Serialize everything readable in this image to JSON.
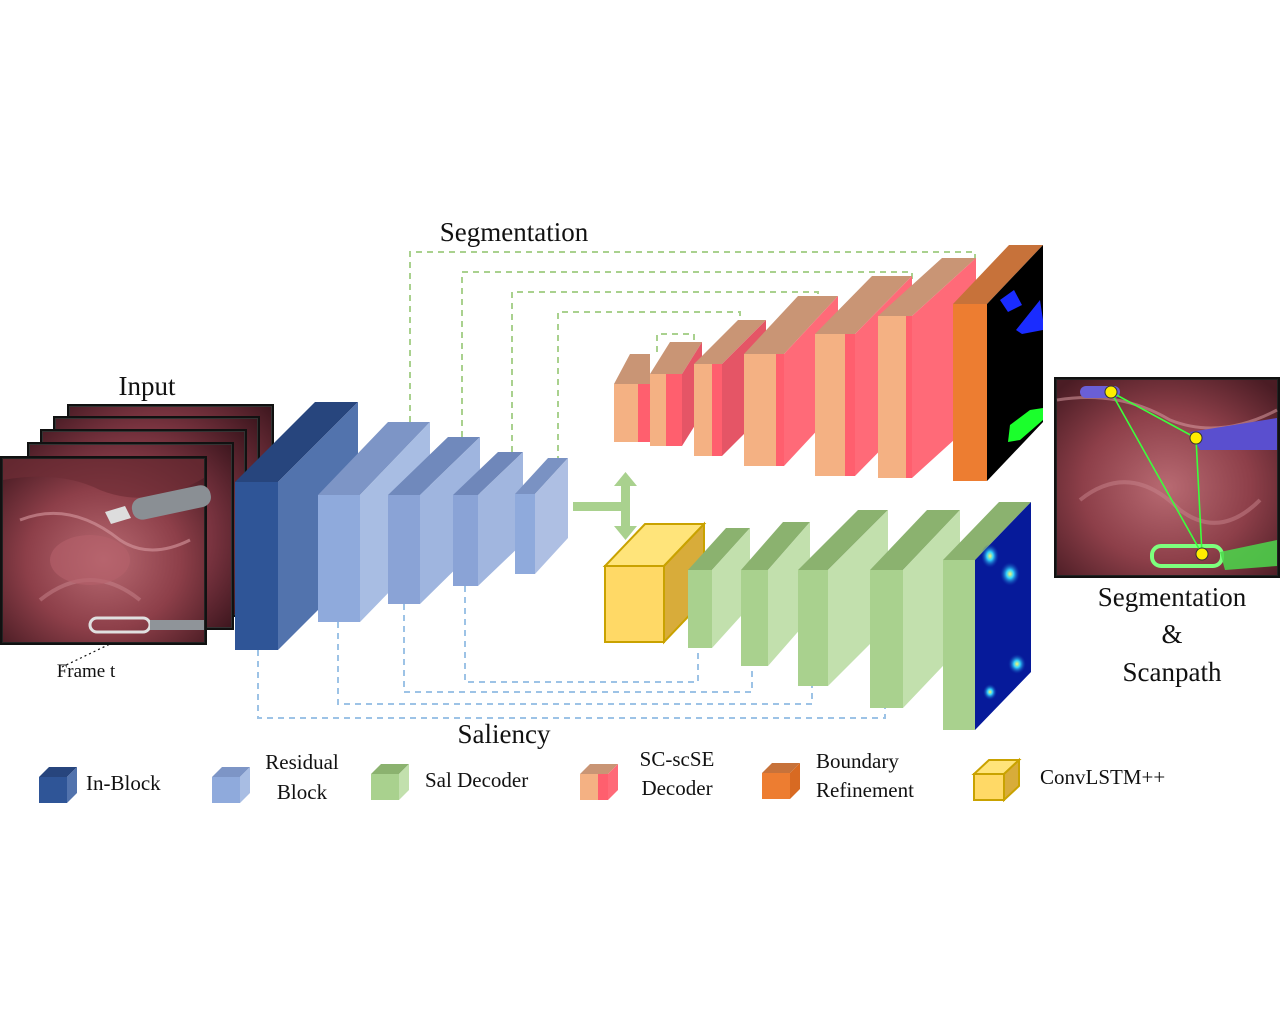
{
  "labels": {
    "input": "Input",
    "frame": "Frame t",
    "segmentation_top": "Segmentation",
    "saliency": "Saliency",
    "output_line1": "Segmentation",
    "output_line2": "&",
    "output_line3": "Scanpath"
  },
  "legend": [
    {
      "label_lines": [
        "In-Block"
      ],
      "color": "#2f5597"
    },
    {
      "label_lines": [
        "Residual",
        "Block"
      ],
      "color": "#8faadc"
    },
    {
      "label_lines": [
        "Sal Decoder"
      ],
      "color": "#a9d18e"
    },
    {
      "label_lines": [
        "SC-scSE",
        "Decoder"
      ],
      "color": "#f4b183"
    },
    {
      "label_lines": [
        "Boundary",
        "Refinement"
      ],
      "color": "#ed7d31"
    },
    {
      "label_lines": [
        "ConvLSTM++"
      ],
      "color": "#ffd966"
    }
  ],
  "colors": {
    "in_block": "#2f5597",
    "residual": "#8faadc",
    "sal_decoder": "#a9d18e",
    "scse_front": "#f4b183",
    "scse_red": "#ff5f6e",
    "boundary": "#ed7d31",
    "convlstm": "#ffd966",
    "seg_skip": "#a9d18e",
    "sal_skip": "#9dc3e6"
  }
}
